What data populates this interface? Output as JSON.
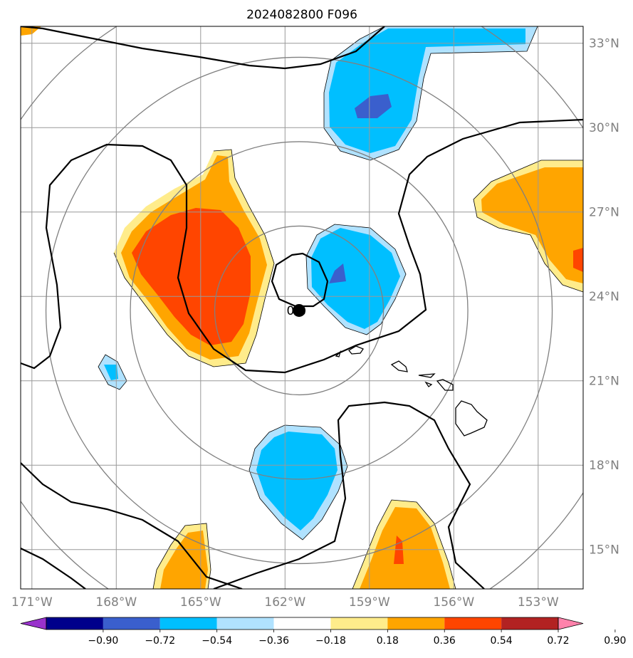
{
  "chart_data": {
    "type": "heatmap",
    "title": "2024082800 F096",
    "x_ticks": [
      "171°W",
      "168°W",
      "165°W",
      "162°W",
      "159°W",
      "156°W",
      "153°W"
    ],
    "y_ticks": [
      "33°N",
      "30°N",
      "27°N",
      "24°N",
      "21°N",
      "18°N",
      "15°N"
    ],
    "lon_values": [
      -171,
      -168,
      -165,
      -162,
      -159,
      -156,
      -153
    ],
    "lat_values": [
      33,
      30,
      27,
      24,
      21,
      18,
      15
    ],
    "xlim": [
      -171.4,
      -151.4
    ],
    "ylim": [
      13.6,
      33.6
    ],
    "grid": true,
    "center_marker": {
      "lon": -161.5,
      "lat": 23.5,
      "label": "0%"
    },
    "range_rings_deg": [
      3,
      6,
      9,
      12
    ],
    "colorbar": {
      "boundaries": [
        -0.9,
        -0.72,
        -0.54,
        -0.36,
        -0.18,
        0.18,
        0.36,
        0.54,
        0.72,
        0.9
      ],
      "labels": [
        "−0.90",
        "−0.72",
        "−0.54",
        "−0.36",
        "−0.18",
        "0.18",
        "0.36",
        "0.54",
        "0.72",
        "0.90"
      ],
      "colors": [
        "#9932cc",
        "#00008b",
        "#3a5fcd",
        "#00bfff",
        "#b0e2ff",
        "#ffffff",
        "#ffec8b",
        "#ffa500",
        "#ff4500",
        "#b22222",
        "#ff82ab"
      ],
      "extend": "both"
    }
  }
}
